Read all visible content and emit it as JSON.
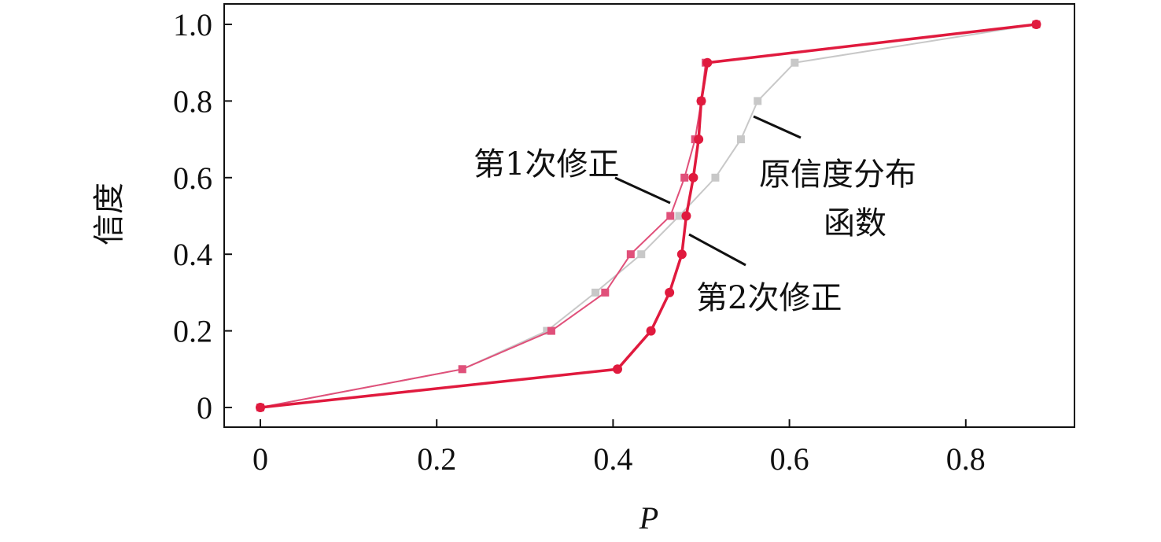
{
  "chart_data": {
    "type": "line",
    "xlabel": "P",
    "ylabel": "信度",
    "xlim": [
      -0.06,
      0.925
    ],
    "ylim": [
      -0.05,
      1.05
    ],
    "xticks": [
      "0",
      "0.2",
      "0.4",
      "0.6",
      "0.8"
    ],
    "xtick_values": [
      0,
      0.2,
      0.4,
      0.6,
      0.8
    ],
    "yticks": [
      "0",
      "0.2",
      "0.4",
      "0.6",
      "0.8",
      "1.0"
    ],
    "ytick_values": [
      0,
      0.2,
      0.4,
      0.6,
      0.8,
      1.0
    ],
    "grid": false,
    "y": [
      0,
      0.1,
      0.2,
      0.3,
      0.4,
      0.5,
      0.6,
      0.7,
      0.8,
      0.9,
      1.0
    ],
    "series": [
      {
        "name": "原信度分布函数",
        "color": "#c8c8c8",
        "marker": "square",
        "x": [
          0,
          0.229,
          0.325,
          0.38,
          0.432,
          0.475,
          0.516,
          0.545,
          0.564,
          0.606,
          0.88
        ]
      },
      {
        "name": "第1次修正",
        "color": "#e0507a",
        "marker": "square",
        "x": [
          0,
          0.229,
          0.33,
          0.391,
          0.42,
          0.465,
          0.481,
          0.493,
          0.5,
          0.505,
          0.88
        ]
      },
      {
        "name": "第2次修正",
        "color": "#e01a3e",
        "marker": "circle",
        "x": [
          0,
          0.405,
          0.443,
          0.464,
          0.478,
          0.483,
          0.491,
          0.497,
          0.5,
          0.507,
          0.88
        ]
      }
    ],
    "annotations": [
      {
        "text": "第1次修正",
        "series": 1
      },
      {
        "text": "原信度分布",
        "text2": "函数",
        "series": 0
      },
      {
        "text": "第2次修正",
        "series": 2
      }
    ]
  }
}
